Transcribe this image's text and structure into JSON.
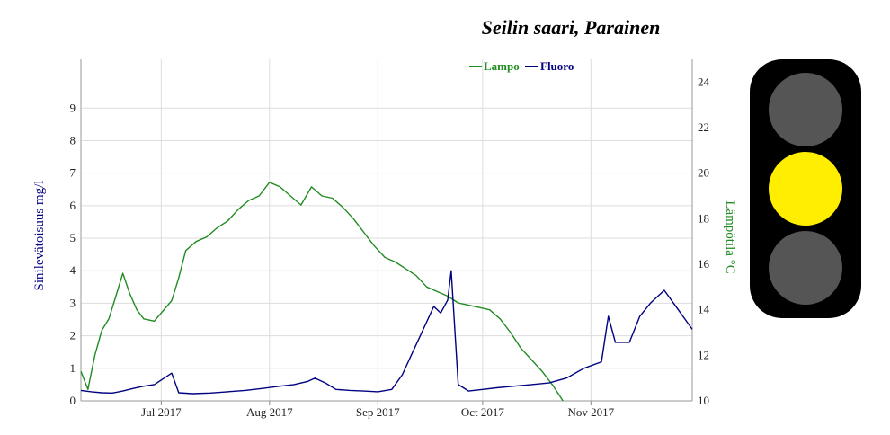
{
  "chart_data": {
    "type": "line",
    "title": "Seilin saari, Parainen",
    "legend": {
      "placement": "top-center",
      "entries": [
        {
          "name": "Lampo",
          "color": "#228b22"
        },
        {
          "name": "Fluoro",
          "color": "#000080"
        }
      ]
    },
    "x_axis": {
      "type": "date",
      "range": [
        "2017-06-08",
        "2017-11-30"
      ],
      "ticks": [
        {
          "date": "2017-07-01",
          "label": "Jul 2017"
        },
        {
          "date": "2017-08-01",
          "label": "Aug 2017"
        },
        {
          "date": "2017-09-01",
          "label": "Sep 2017"
        },
        {
          "date": "2017-10-01",
          "label": "Oct 2017"
        },
        {
          "date": "2017-11-01",
          "label": "Nov 2017"
        }
      ]
    },
    "y_left": {
      "label": "Sinilevätoisuus mg/l",
      "range": [
        0,
        10.5
      ],
      "ticks": [
        0,
        1,
        2,
        3,
        4,
        5,
        6,
        7,
        8,
        9
      ],
      "color": "#000080"
    },
    "y_right": {
      "label": "Lämpötila °C",
      "range": [
        10,
        25
      ],
      "ticks": [
        10,
        12,
        14,
        16,
        18,
        20,
        22,
        24
      ],
      "color": "#228b22"
    },
    "grid": true,
    "series": [
      {
        "name": "Lampo",
        "axis": "right",
        "color": "#228b22",
        "x": [
          "2017-06-08",
          "2017-06-10",
          "2017-06-12",
          "2017-06-14",
          "2017-06-16",
          "2017-06-18",
          "2017-06-20",
          "2017-06-22",
          "2017-06-24",
          "2017-06-26",
          "2017-06-29",
          "2017-07-04",
          "2017-07-06",
          "2017-07-08",
          "2017-07-11",
          "2017-07-14",
          "2017-07-17",
          "2017-07-20",
          "2017-07-23",
          "2017-07-26",
          "2017-07-29",
          "2017-08-01",
          "2017-08-04",
          "2017-08-07",
          "2017-08-10",
          "2017-08-13",
          "2017-08-16",
          "2017-08-19",
          "2017-08-22",
          "2017-08-25",
          "2017-08-28",
          "2017-08-31",
          "2017-09-03",
          "2017-09-06",
          "2017-09-09",
          "2017-09-12",
          "2017-09-15",
          "2017-09-18",
          "2017-09-21",
          "2017-09-24",
          "2017-09-27",
          "2017-09-30",
          "2017-10-03",
          "2017-10-06",
          "2017-10-09",
          "2017-10-12",
          "2017-10-15",
          "2017-10-18",
          "2017-10-21",
          "2017-10-24"
        ],
        "values": [
          11.3,
          10.5,
          12.0,
          13.1,
          13.6,
          14.6,
          15.6,
          14.7,
          14.0,
          13.6,
          13.5,
          14.4,
          15.4,
          16.6,
          17.0,
          17.2,
          17.6,
          17.9,
          18.4,
          18.8,
          19.0,
          19.6,
          19.4,
          19.0,
          18.6,
          19.4,
          19.0,
          18.9,
          18.5,
          18.0,
          17.4,
          16.8,
          16.3,
          16.1,
          15.8,
          15.5,
          15.0,
          14.8,
          14.6,
          14.3,
          14.2,
          14.1,
          14.0,
          13.6,
          13.0,
          12.3,
          11.8,
          11.3,
          10.7,
          10.0
        ]
      },
      {
        "name": "Fluoro",
        "axis": "left",
        "color": "#000080",
        "x": [
          "2017-06-08",
          "2017-06-11",
          "2017-06-14",
          "2017-06-17",
          "2017-06-20",
          "2017-06-23",
          "2017-06-26",
          "2017-06-29",
          "2017-07-04",
          "2017-07-06",
          "2017-07-10",
          "2017-07-15",
          "2017-07-20",
          "2017-07-25",
          "2017-07-30",
          "2017-08-04",
          "2017-08-08",
          "2017-08-12",
          "2017-08-14",
          "2017-08-17",
          "2017-08-20",
          "2017-08-24",
          "2017-08-28",
          "2017-09-01",
          "2017-09-05",
          "2017-09-08",
          "2017-09-11",
          "2017-09-14",
          "2017-09-17",
          "2017-09-19",
          "2017-09-21",
          "2017-09-22",
          "2017-09-24",
          "2017-09-27",
          "2017-10-01",
          "2017-10-05",
          "2017-10-10",
          "2017-10-15",
          "2017-10-20",
          "2017-10-25",
          "2017-10-30",
          "2017-11-04",
          "2017-11-06",
          "2017-11-08",
          "2017-11-12",
          "2017-11-15",
          "2017-11-18",
          "2017-11-22",
          "2017-11-26",
          "2017-11-30"
        ],
        "values": [
          0.32,
          0.28,
          0.25,
          0.24,
          0.3,
          0.38,
          0.45,
          0.5,
          0.85,
          0.25,
          0.22,
          0.24,
          0.28,
          0.32,
          0.38,
          0.45,
          0.5,
          0.6,
          0.7,
          0.55,
          0.35,
          0.32,
          0.3,
          0.28,
          0.35,
          0.8,
          1.5,
          2.2,
          2.9,
          2.7,
          3.1,
          4.0,
          0.5,
          0.3,
          0.35,
          0.4,
          0.45,
          0.5,
          0.55,
          0.7,
          1.0,
          1.2,
          2.6,
          1.8,
          1.8,
          2.6,
          3.0,
          3.4,
          2.8,
          2.2
        ]
      }
    ]
  },
  "traffic_light": {
    "active": "yellow",
    "lamps": [
      {
        "name": "top",
        "color": "#555555"
      },
      {
        "name": "middle",
        "color": "#ffee00"
      },
      {
        "name": "bottom",
        "color": "#555555"
      }
    ]
  }
}
